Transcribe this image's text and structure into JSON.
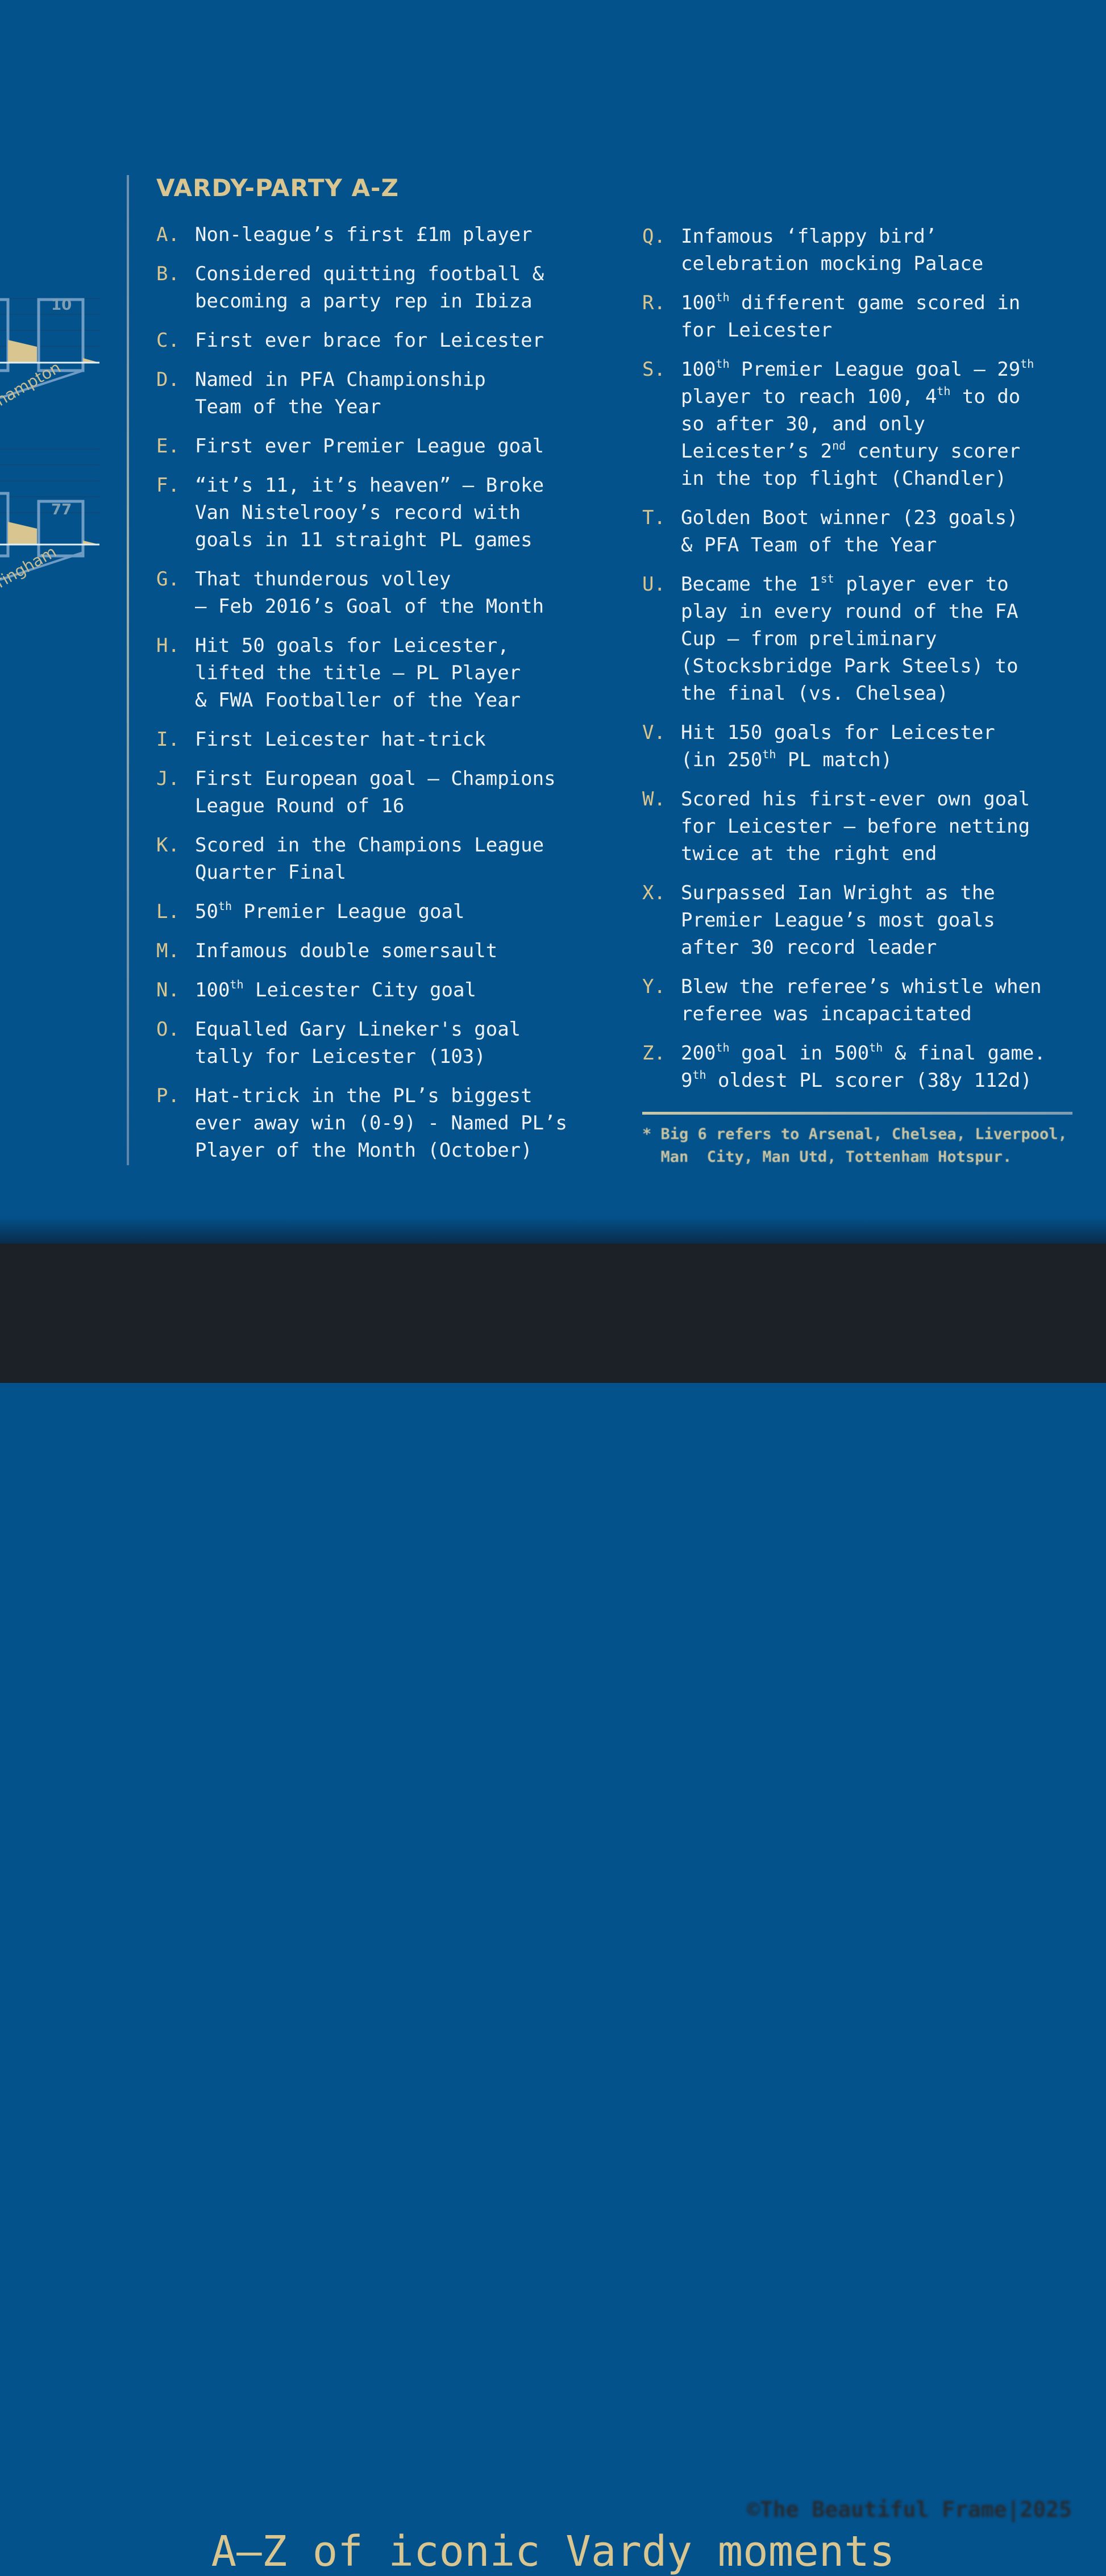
{
  "title": "VARDY-PARTY A-Z",
  "chart_fragment": {
    "labels": [
      "10",
      "77"
    ],
    "category_fragments": [
      "hampton",
      "ringham"
    ]
  },
  "left_items": [
    {
      "letter": "A.",
      "lines": [
        "Non-league’s first £1m player"
      ]
    },
    {
      "letter": "B.",
      "lines": [
        "Considered quitting football &",
        "becoming a party rep in Ibiza"
      ]
    },
    {
      "letter": "C.",
      "lines": [
        "First ever brace for Leicester"
      ]
    },
    {
      "letter": "D.",
      "lines": [
        "Named in PFA Championship",
        "Team of the Year"
      ]
    },
    {
      "letter": "E.",
      "lines": [
        "First ever Premier League goal"
      ]
    },
    {
      "letter": "F.",
      "lines": [
        "“it’s 11, it’s heaven” – Broke",
        "Van Nistelrooy’s record with",
        "goals in 11 straight PL games"
      ]
    },
    {
      "letter": "G.",
      "lines": [
        "That thunderous volley",
        "– Feb 2016’s Goal of the Month"
      ]
    },
    {
      "letter": "H.",
      "lines": [
        "Hit 50 goals for Leicester,",
        "lifted the title – PL Player",
        "& FWA Footballer of the Year"
      ]
    },
    {
      "letter": "I.",
      "lines": [
        "First Leicester hat-trick"
      ]
    },
    {
      "letter": "J.",
      "lines": [
        "First European goal – Champions",
        "League Round of 16"
      ]
    },
    {
      "letter": "K.",
      "lines": [
        "Scored in the Champions League",
        "Quarter Final"
      ]
    },
    {
      "letter": "L.",
      "lines": [
        "50^{th} Premier League goal"
      ]
    },
    {
      "letter": "M.",
      "lines": [
        "Infamous double somersault"
      ]
    },
    {
      "letter": "N.",
      "lines": [
        "100^{th} Leicester City goal"
      ]
    },
    {
      "letter": "O.",
      "lines": [
        "Equalled Gary Lineker's goal",
        "tally for Leicester (103)"
      ]
    },
    {
      "letter": "P.",
      "lines": [
        "Hat-trick in the PL’s biggest",
        "ever away win (0-9) - Named PL’s",
        "Player of the Month (October)"
      ]
    }
  ],
  "right_items": [
    {
      "letter": "Q.",
      "lines": [
        "Infamous ‘flappy bird’",
        "celebration mocking Palace"
      ]
    },
    {
      "letter": "R.",
      "lines": [
        "100^{th} different game scored in",
        "for Leicester"
      ]
    },
    {
      "letter": "S.",
      "lines": [
        "100^{th} Premier League goal – 29^{th}",
        "player to reach 100, 4^{th} to do",
        "so after 30, and only",
        "Leicester’s 2^{nd} century scorer",
        "in the top flight (Chandler)"
      ]
    },
    {
      "letter": "T.",
      "lines": [
        "Golden Boot winner (23 goals)",
        "& PFA Team of the Year"
      ]
    },
    {
      "letter": "U.",
      "lines": [
        "Became the 1^{st} player ever to",
        "play in every round of the FA",
        "Cup – from preliminary",
        "(Stocksbridge Park Steels) to",
        "the final (vs. Chelsea)"
      ]
    },
    {
      "letter": "V.",
      "lines": [
        "Hit 150 goals for Leicester",
        "(in 250^{th} PL match)"
      ]
    },
    {
      "letter": "W.",
      "lines": [
        "Scored his first-ever own goal",
        "for Leicester – before netting",
        "twice at the right end"
      ]
    },
    {
      "letter": "X.",
      "lines": [
        "Surpassed Ian Wright as the",
        "Premier League’s most goals",
        "after 30 record leader"
      ]
    },
    {
      "letter": "Y.",
      "lines": [
        "Blew the referee’s whistle when",
        "referee was incapacitated"
      ]
    },
    {
      "letter": "Z.",
      "lines": [
        "200^{th} goal in 500^{th} & final game.",
        "9^{th} oldest PL scorer (38y 112d)"
      ]
    }
  ],
  "footnote": "* Big 6 refers to Arsenal, Chelsea, Liverpool,\n  Man  City, Man Utd, Tottenham Hotspur.",
  "watermark": "©The Beautiful Frame|2025",
  "caption": "A–Z of iconic Vardy moments",
  "colors": {
    "background": "#03528c",
    "accent": "#d8c58f",
    "text": "#eef2f6",
    "footer": "#1c2027"
  }
}
